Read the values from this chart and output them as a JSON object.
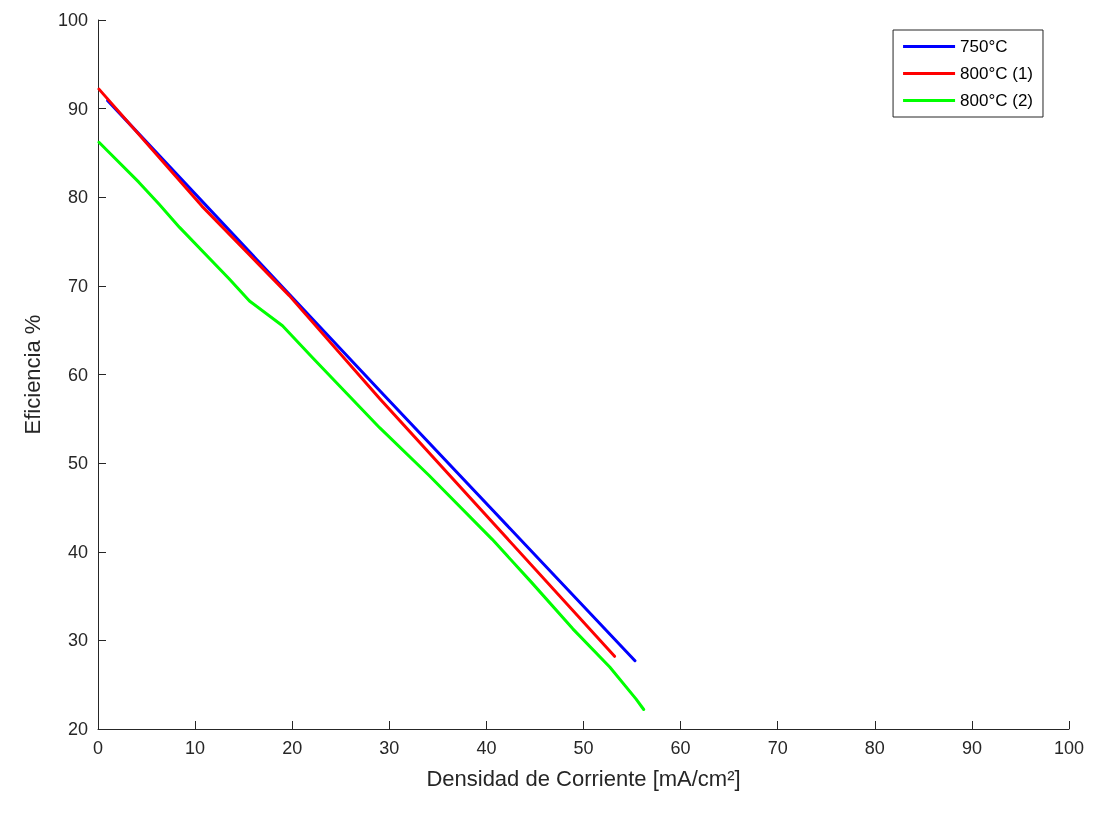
{
  "chart_data": {
    "type": "line",
    "xlabel": "Densidad de Corriente [mA/cm²]",
    "ylabel": "Eficiencia %",
    "xlim": [
      0,
      100
    ],
    "xticks": [
      0,
      10,
      20,
      30,
      40,
      50,
      60,
      70,
      80,
      90,
      100
    ],
    "ylim": [
      20,
      100
    ],
    "yticks": [
      20,
      30,
      40,
      50,
      60,
      70,
      80,
      90,
      100
    ],
    "grid": false,
    "legend": "top right",
    "marker": "none",
    "line_style": "solid",
    "series": [
      {
        "name": "750°C",
        "color": "#0000ff",
        "x": [
          1,
          29,
          55.3
        ],
        "values": [
          90.9,
          58.2,
          27.7
        ]
      },
      {
        "name": "800°C (1)",
        "color": "#ff0000",
        "x": [
          0.1,
          10.7,
          19.7,
          29,
          53.2
        ],
        "values": [
          92.2,
          79.0,
          68.9,
          57.3,
          28.2
        ]
      },
      {
        "name": "800°C (2)",
        "color": "#00ff00",
        "x": [
          0.1,
          1.1,
          4.2,
          6.3,
          8.4,
          13.5,
          15.6,
          19.0,
          22.1,
          25.5,
          29,
          34.1,
          40.6,
          44.6,
          48.9,
          52.7,
          55.4,
          56.2
        ],
        "values": [
          86.2,
          85.1,
          81.7,
          79.2,
          76.6,
          70.8,
          68.3,
          65.5,
          61.9,
          58,
          54.0,
          48.6,
          41.4,
          36.6,
          31.3,
          27.0,
          23.4,
          22.2
        ]
      }
    ]
  }
}
